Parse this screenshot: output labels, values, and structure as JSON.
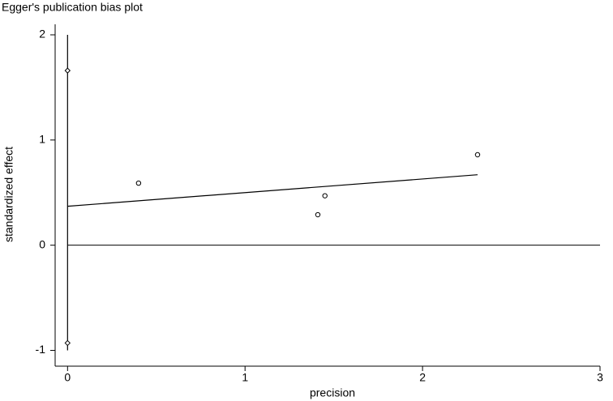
{
  "chart_data": {
    "type": "scatter",
    "title": "Egger's publication bias plot",
    "x_label": "precision",
    "y_label": "standardized effect",
    "xlim": [
      -0.07,
      3
    ],
    "ylim": [
      -1.15,
      2.1
    ],
    "xticks": [
      0,
      1,
      2,
      3
    ],
    "yticks": [
      -1,
      0,
      1,
      2
    ],
    "reference_line": 0,
    "series": [
      {
        "kind": "line",
        "color": "#000000",
        "x": [
          0,
          0
        ],
        "values": [
          -1,
          2
        ]
      },
      {
        "kind": "diamond",
        "color": "#000000",
        "x": [
          0,
          0
        ],
        "values": [
          1.66,
          -0.93
        ]
      },
      {
        "kind": "circle",
        "color": "#000000",
        "x": [
          0.4,
          1.41,
          1.45,
          2.31
        ],
        "values": [
          0.59,
          0.29,
          0.47,
          0.86
        ]
      },
      {
        "kind": "line",
        "color": "#000000",
        "x": [
          0,
          2.31
        ],
        "values": [
          0.37,
          0.67
        ]
      }
    ]
  }
}
